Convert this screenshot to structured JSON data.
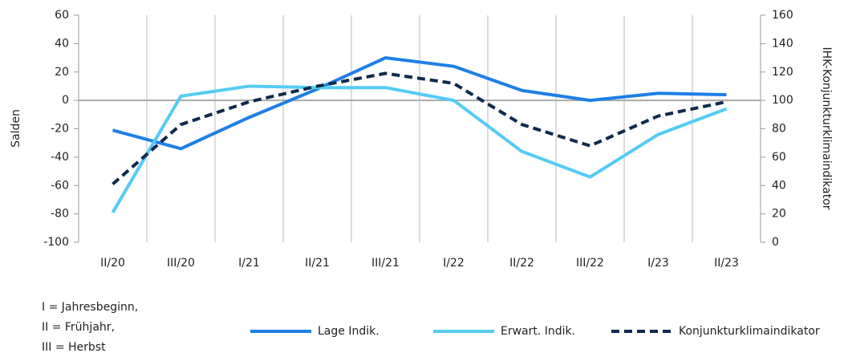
{
  "chart_data": {
    "type": "line",
    "ylabel": "Salden",
    "y2label": "IHK-Konjunkturklimaindikator",
    "categories": [
      "II/20",
      "III/20",
      "I/21",
      "II/21",
      "III/21",
      "I/22",
      "II/22",
      "III/22",
      "I/23",
      "II/23"
    ],
    "series": [
      {
        "name": "Lage Indik.",
        "color": "#1e7fe6",
        "values": [
          -21,
          -34,
          -12,
          8,
          30,
          24,
          7,
          0,
          5,
          4
        ]
      },
      {
        "name": "Erwart. Indik.",
        "color": "#55cbf5",
        "values": [
          -79,
          3,
          10,
          9,
          9,
          0,
          -36,
          -54,
          -24,
          -6
        ]
      },
      {
        "name": "Konjunkturklimaindikator",
        "color": "#0f2a4d",
        "dashed": true,
        "axis": "y2",
        "values": [
          41,
          83,
          99,
          110,
          119,
          112,
          83,
          68,
          89,
          99
        ]
      }
    ],
    "ylim": [
      -100,
      60
    ],
    "yticks": [
      -100,
      -80,
      -60,
      -40,
      -20,
      0,
      20,
      40,
      60
    ],
    "y2lim": [
      0,
      160
    ],
    "y2ticks": [
      0,
      20,
      40,
      60,
      80,
      100,
      120,
      140,
      160
    ],
    "notes": [
      "I = Jahresbeginn,",
      "II = Frühjahr,",
      "III = Herbst"
    ]
  }
}
